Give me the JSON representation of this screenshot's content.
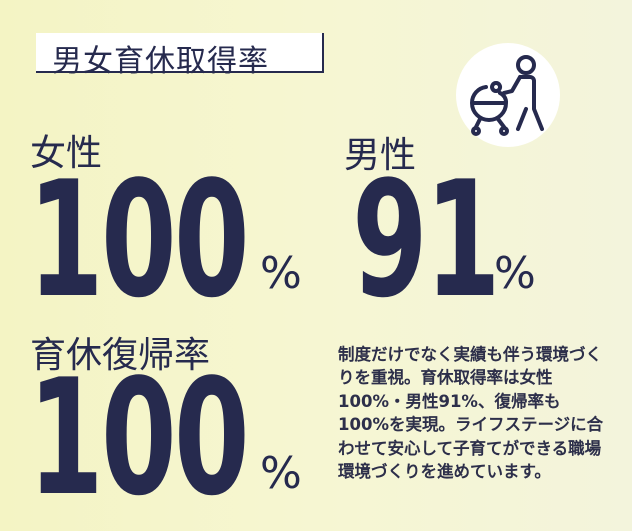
{
  "title": "男女育休取得率",
  "female": {
    "label": "女性",
    "value": "100",
    "unit": "%"
  },
  "male": {
    "label": "男性",
    "value": "91",
    "unit": "%"
  },
  "return_rate": {
    "label": "育休復帰率",
    "value": "100",
    "unit": "%"
  },
  "icon": "person-with-stroller-icon",
  "description": "制度だけでなく実績も伴う環境づくりを重視。育休取得率は女性100%・男性91%、復帰率も100%を実現。ライフステージに合わせて安心して子育てができる職場環境づくりを進めています。",
  "colors": {
    "navy": "#262a4e",
    "background": "#f5f5cc",
    "white": "#ffffff"
  }
}
